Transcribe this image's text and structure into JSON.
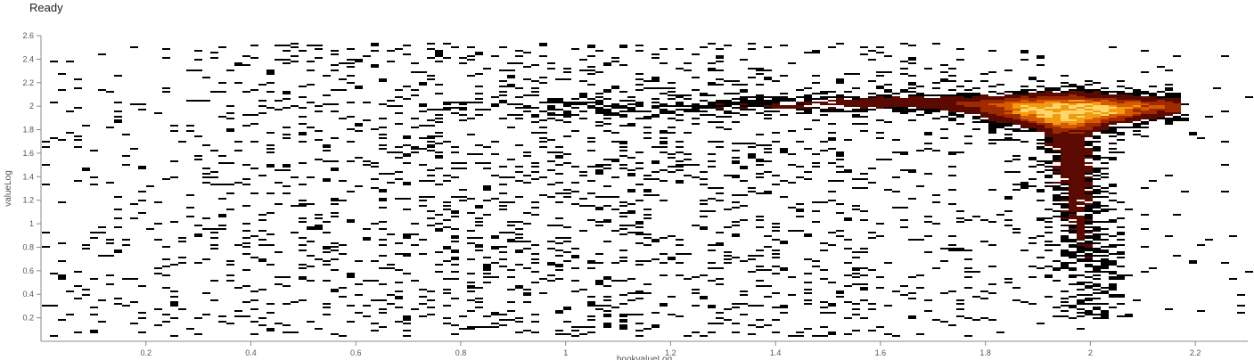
{
  "status": {
    "text": "Ready"
  },
  "chart_data": {
    "type": "heatmap",
    "title": "",
    "xlabel": "bookvalueLog",
    "ylabel": "valueLog",
    "xlim": [
      0,
      2.3
    ],
    "ylim": [
      0,
      2.6
    ],
    "x_ticks": [
      0.2,
      0.4,
      0.6,
      0.8,
      1,
      1.2,
      1.4,
      1.6,
      1.8,
      2,
      2.2
    ],
    "x_tick_labels": [
      "0.2",
      "0.4",
      "0.6",
      "0.8",
      "1",
      "1.2",
      "1.4",
      "1.6",
      "1.8",
      "2",
      "2.2"
    ],
    "y_ticks": [
      0.2,
      0.4,
      0.6,
      0.8,
      1,
      1.2,
      1.4,
      1.6,
      1.8,
      2,
      2.2,
      2.4,
      2.6
    ],
    "y_tick_labels": [
      "0.2",
      "0.4",
      "0.6",
      "0.8",
      "1",
      "1.2",
      "1.4",
      "1.6",
      "1.8",
      "2",
      "2.2",
      "2.4",
      "2.6"
    ],
    "colormap": [
      "#000000",
      "#5a0a00",
      "#a02a00",
      "#d85a00",
      "#f29a10",
      "#ffd66a",
      "#ffffff"
    ],
    "density_features": {
      "peak": {
        "x": 1.95,
        "y": 1.97
      },
      "ridge": [
        {
          "x": 0.7,
          "y": 1.98
        },
        {
          "x": 1.0,
          "y": 1.99
        },
        {
          "x": 1.3,
          "y": 2.01
        },
        {
          "x": 1.6,
          "y": 2.04
        },
        {
          "x": 1.8,
          "y": 2.02
        },
        {
          "x": 1.95,
          "y": 1.97
        },
        {
          "x": 2.1,
          "y": 2.01
        }
      ],
      "vertical_tail": [
        {
          "x": 1.95,
          "y": 1.8
        },
        {
          "x": 1.96,
          "y": 1.5
        },
        {
          "x": 1.97,
          "y": 1.2
        },
        {
          "x": 1.98,
          "y": 0.9
        },
        {
          "x": 1.99,
          "y": 0.6
        }
      ]
    },
    "grid": false,
    "legend": "none"
  }
}
